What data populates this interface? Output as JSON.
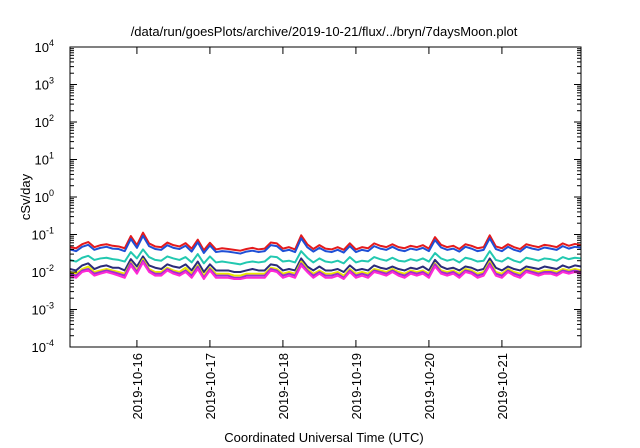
{
  "chart_data": {
    "type": "line",
    "title": "/data/run/goesPlots/archive/2019-10-21/flux/../bryn/7daysMoon.plot",
    "xlabel": "Coordinated Universal Time (UTC)",
    "ylabel": "cSv/day",
    "y_scale": "log",
    "ylim": [
      0.0001,
      10000
    ],
    "y_ticks": [
      {
        "base": "10",
        "exp": "-4",
        "value": 0.0001
      },
      {
        "base": "10",
        "exp": "-3",
        "value": 0.001
      },
      {
        "base": "10",
        "exp": "-2",
        "value": 0.01
      },
      {
        "base": "10",
        "exp": "-1",
        "value": 0.1
      },
      {
        "base": "10",
        "exp": "0",
        "value": 1
      },
      {
        "base": "10",
        "exp": "1",
        "value": 10
      },
      {
        "base": "10",
        "exp": "2",
        "value": 100
      },
      {
        "base": "10",
        "exp": "3",
        "value": 1000
      },
      {
        "base": "10",
        "exp": "4",
        "value": 10000
      }
    ],
    "xlim": [
      "2019-10-15T02:00",
      "2019-10-22T02:00"
    ],
    "x_ticks": [
      "2019-10-16",
      "2019-10-17",
      "2019-10-18",
      "2019-10-19",
      "2019-10-20",
      "2019-10-21"
    ],
    "grid": false,
    "legend": "none",
    "x": [
      "2019-10-15T02:00",
      "2019-10-15T04:00",
      "2019-10-15T06:00",
      "2019-10-15T08:00",
      "2019-10-15T10:00",
      "2019-10-15T12:00",
      "2019-10-15T14:00",
      "2019-10-15T16:00",
      "2019-10-15T18:00",
      "2019-10-15T20:00",
      "2019-10-15T22:00",
      "2019-10-16T00:00",
      "2019-10-16T02:00",
      "2019-10-16T04:00",
      "2019-10-16T06:00",
      "2019-10-16T08:00",
      "2019-10-16T10:00",
      "2019-10-16T12:00",
      "2019-10-16T14:00",
      "2019-10-16T16:00",
      "2019-10-16T18:00",
      "2019-10-16T20:00",
      "2019-10-16T22:00",
      "2019-10-17T00:00",
      "2019-10-17T02:00",
      "2019-10-17T04:00",
      "2019-10-17T06:00",
      "2019-10-17T08:00",
      "2019-10-17T10:00",
      "2019-10-17T12:00",
      "2019-10-17T14:00",
      "2019-10-17T16:00",
      "2019-10-17T18:00",
      "2019-10-17T20:00",
      "2019-10-17T22:00",
      "2019-10-18T00:00",
      "2019-10-18T02:00",
      "2019-10-18T04:00",
      "2019-10-18T06:00",
      "2019-10-18T08:00",
      "2019-10-18T10:00",
      "2019-10-18T12:00",
      "2019-10-18T14:00",
      "2019-10-18T16:00",
      "2019-10-18T18:00",
      "2019-10-18T20:00",
      "2019-10-18T22:00",
      "2019-10-19T00:00",
      "2019-10-19T02:00",
      "2019-10-19T04:00",
      "2019-10-19T06:00",
      "2019-10-19T08:00",
      "2019-10-19T10:00",
      "2019-10-19T12:00",
      "2019-10-19T14:00",
      "2019-10-19T16:00",
      "2019-10-19T18:00",
      "2019-10-19T20:00",
      "2019-10-19T22:00",
      "2019-10-20T00:00",
      "2019-10-20T02:00",
      "2019-10-20T04:00",
      "2019-10-20T06:00",
      "2019-10-20T08:00",
      "2019-10-20T10:00",
      "2019-10-20T12:00",
      "2019-10-20T14:00",
      "2019-10-20T16:00",
      "2019-10-20T18:00",
      "2019-10-20T20:00",
      "2019-10-20T22:00",
      "2019-10-21T00:00",
      "2019-10-21T02:00",
      "2019-10-21T04:00",
      "2019-10-21T06:00",
      "2019-10-21T08:00",
      "2019-10-21T10:00",
      "2019-10-21T12:00",
      "2019-10-21T14:00",
      "2019-10-21T16:00",
      "2019-10-21T18:00",
      "2019-10-21T20:00",
      "2019-10-21T22:00",
      "2019-10-22T00:00",
      "2019-10-22T02:00"
    ],
    "series": [
      {
        "color": "#e41a1c",
        "values": [
          0.046,
          0.043,
          0.055,
          0.063,
          0.046,
          0.052,
          0.055,
          0.05,
          0.048,
          0.043,
          0.091,
          0.052,
          0.112,
          0.058,
          0.048,
          0.046,
          0.061,
          0.052,
          0.048,
          0.059,
          0.042,
          0.073,
          0.038,
          0.06,
          0.04,
          0.043,
          0.041,
          0.039,
          0.037,
          0.041,
          0.044,
          0.04,
          0.042,
          0.061,
          0.058,
          0.042,
          0.046,
          0.04,
          0.095,
          0.055,
          0.041,
          0.052,
          0.042,
          0.04,
          0.046,
          0.039,
          0.058,
          0.04,
          0.046,
          0.043,
          0.058,
          0.05,
          0.046,
          0.055,
          0.046,
          0.043,
          0.05,
          0.046,
          0.052,
          0.042,
          0.085,
          0.053,
          0.046,
          0.05,
          0.041,
          0.055,
          0.05,
          0.043,
          0.046,
          0.095,
          0.048,
          0.043,
          0.055,
          0.046,
          0.041,
          0.055,
          0.05,
          0.046,
          0.053,
          0.05,
          0.046,
          0.058,
          0.05,
          0.056,
          0.052
        ]
      },
      {
        "color": "#1f4fd6",
        "values": [
          0.04,
          0.036,
          0.047,
          0.053,
          0.039,
          0.044,
          0.047,
          0.042,
          0.041,
          0.036,
          0.076,
          0.044,
          0.092,
          0.049,
          0.041,
          0.039,
          0.052,
          0.044,
          0.041,
          0.05,
          0.035,
          0.062,
          0.032,
          0.051,
          0.034,
          0.036,
          0.035,
          0.033,
          0.031,
          0.035,
          0.037,
          0.034,
          0.036,
          0.052,
          0.049,
          0.036,
          0.039,
          0.034,
          0.079,
          0.046,
          0.035,
          0.044,
          0.036,
          0.034,
          0.039,
          0.033,
          0.049,
          0.034,
          0.039,
          0.036,
          0.049,
          0.042,
          0.039,
          0.047,
          0.039,
          0.036,
          0.042,
          0.039,
          0.044,
          0.036,
          0.071,
          0.045,
          0.039,
          0.042,
          0.035,
          0.047,
          0.042,
          0.036,
          0.039,
          0.079,
          0.041,
          0.036,
          0.047,
          0.039,
          0.035,
          0.047,
          0.042,
          0.039,
          0.045,
          0.042,
          0.039,
          0.049,
          0.042,
          0.047,
          0.044
        ]
      },
      {
        "color": "#22c8b0",
        "values": [
          0.021,
          0.019,
          0.024,
          0.027,
          0.021,
          0.023,
          0.024,
          0.022,
          0.021,
          0.019,
          0.034,
          0.023,
          0.04,
          0.025,
          0.021,
          0.02,
          0.026,
          0.023,
          0.021,
          0.025,
          0.018,
          0.03,
          0.017,
          0.026,
          0.018,
          0.019,
          0.018,
          0.017,
          0.016,
          0.018,
          0.019,
          0.018,
          0.019,
          0.026,
          0.025,
          0.019,
          0.02,
          0.018,
          0.036,
          0.024,
          0.018,
          0.023,
          0.019,
          0.018,
          0.02,
          0.017,
          0.025,
          0.018,
          0.02,
          0.019,
          0.025,
          0.022,
          0.02,
          0.024,
          0.02,
          0.019,
          0.022,
          0.02,
          0.023,
          0.019,
          0.032,
          0.023,
          0.02,
          0.022,
          0.018,
          0.024,
          0.022,
          0.019,
          0.02,
          0.036,
          0.021,
          0.019,
          0.024,
          0.02,
          0.018,
          0.024,
          0.022,
          0.02,
          0.023,
          0.022,
          0.02,
          0.025,
          0.022,
          0.024,
          0.023
        ]
      },
      {
        "color": "#2b2b7a",
        "values": [
          0.012,
          0.011,
          0.015,
          0.017,
          0.012,
          0.014,
          0.015,
          0.013,
          0.013,
          0.011,
          0.022,
          0.014,
          0.026,
          0.015,
          0.013,
          0.012,
          0.016,
          0.014,
          0.013,
          0.016,
          0.011,
          0.019,
          0.01,
          0.016,
          0.011,
          0.011,
          0.011,
          0.01,
          0.01,
          0.011,
          0.012,
          0.011,
          0.011,
          0.016,
          0.015,
          0.011,
          0.012,
          0.011,
          0.023,
          0.014,
          0.011,
          0.014,
          0.011,
          0.011,
          0.012,
          0.01,
          0.015,
          0.011,
          0.012,
          0.011,
          0.015,
          0.013,
          0.012,
          0.014,
          0.012,
          0.011,
          0.013,
          0.012,
          0.014,
          0.011,
          0.021,
          0.014,
          0.012,
          0.013,
          0.011,
          0.014,
          0.013,
          0.011,
          0.012,
          0.023,
          0.013,
          0.011,
          0.014,
          0.012,
          0.011,
          0.014,
          0.013,
          0.012,
          0.014,
          0.013,
          0.012,
          0.015,
          0.013,
          0.015,
          0.014
        ]
      },
      {
        "color": "#e8e800",
        "values": [
          0.01,
          0.009,
          0.012,
          0.014,
          0.01,
          0.011,
          0.012,
          0.011,
          0.01,
          0.009,
          0.018,
          0.011,
          0.022,
          0.012,
          0.01,
          0.01,
          0.013,
          0.011,
          0.01,
          0.013,
          0.009,
          0.015,
          0.008,
          0.013,
          0.009,
          0.009,
          0.009,
          0.008,
          0.008,
          0.009,
          0.009,
          0.009,
          0.009,
          0.013,
          0.012,
          0.009,
          0.01,
          0.009,
          0.019,
          0.012,
          0.009,
          0.011,
          0.009,
          0.009,
          0.01,
          0.008,
          0.012,
          0.009,
          0.01,
          0.009,
          0.012,
          0.011,
          0.01,
          0.012,
          0.01,
          0.009,
          0.011,
          0.01,
          0.011,
          0.009,
          0.017,
          0.011,
          0.01,
          0.011,
          0.009,
          0.012,
          0.011,
          0.009,
          0.01,
          0.019,
          0.01,
          0.009,
          0.012,
          0.01,
          0.009,
          0.012,
          0.011,
          0.01,
          0.011,
          0.011,
          0.01,
          0.012,
          0.011,
          0.012,
          0.011
        ]
      },
      {
        "color": "#9b30d0",
        "values": [
          0.009,
          0.008,
          0.011,
          0.012,
          0.009,
          0.01,
          0.011,
          0.01,
          0.009,
          0.008,
          0.017,
          0.01,
          0.02,
          0.011,
          0.009,
          0.009,
          0.012,
          0.01,
          0.009,
          0.011,
          0.008,
          0.014,
          0.007,
          0.012,
          0.008,
          0.008,
          0.008,
          0.007,
          0.007,
          0.008,
          0.008,
          0.008,
          0.008,
          0.012,
          0.011,
          0.008,
          0.009,
          0.008,
          0.017,
          0.011,
          0.008,
          0.01,
          0.008,
          0.008,
          0.009,
          0.007,
          0.011,
          0.008,
          0.009,
          0.008,
          0.011,
          0.01,
          0.009,
          0.011,
          0.009,
          0.008,
          0.01,
          0.009,
          0.01,
          0.008,
          0.016,
          0.01,
          0.009,
          0.01,
          0.008,
          0.011,
          0.01,
          0.008,
          0.009,
          0.017,
          0.009,
          0.008,
          0.011,
          0.009,
          0.008,
          0.011,
          0.01,
          0.009,
          0.01,
          0.01,
          0.009,
          0.011,
          0.01,
          0.011,
          0.01
        ]
      },
      {
        "color": "#ff2ad4",
        "values": [
          0.008,
          0.007,
          0.01,
          0.011,
          0.008,
          0.009,
          0.01,
          0.009,
          0.008,
          0.007,
          0.015,
          0.009,
          0.018,
          0.01,
          0.008,
          0.008,
          0.011,
          0.009,
          0.008,
          0.01,
          0.007,
          0.012,
          0.0065,
          0.011,
          0.007,
          0.007,
          0.007,
          0.0065,
          0.0065,
          0.007,
          0.007,
          0.007,
          0.007,
          0.011,
          0.01,
          0.007,
          0.008,
          0.007,
          0.015,
          0.01,
          0.007,
          0.009,
          0.007,
          0.007,
          0.008,
          0.0065,
          0.01,
          0.007,
          0.008,
          0.007,
          0.01,
          0.009,
          0.008,
          0.01,
          0.008,
          0.007,
          0.009,
          0.008,
          0.009,
          0.007,
          0.014,
          0.009,
          0.008,
          0.009,
          0.007,
          0.01,
          0.009,
          0.007,
          0.008,
          0.015,
          0.008,
          0.007,
          0.01,
          0.008,
          0.007,
          0.01,
          0.009,
          0.008,
          0.009,
          0.009,
          0.008,
          0.01,
          0.009,
          0.01,
          0.009
        ]
      }
    ]
  }
}
